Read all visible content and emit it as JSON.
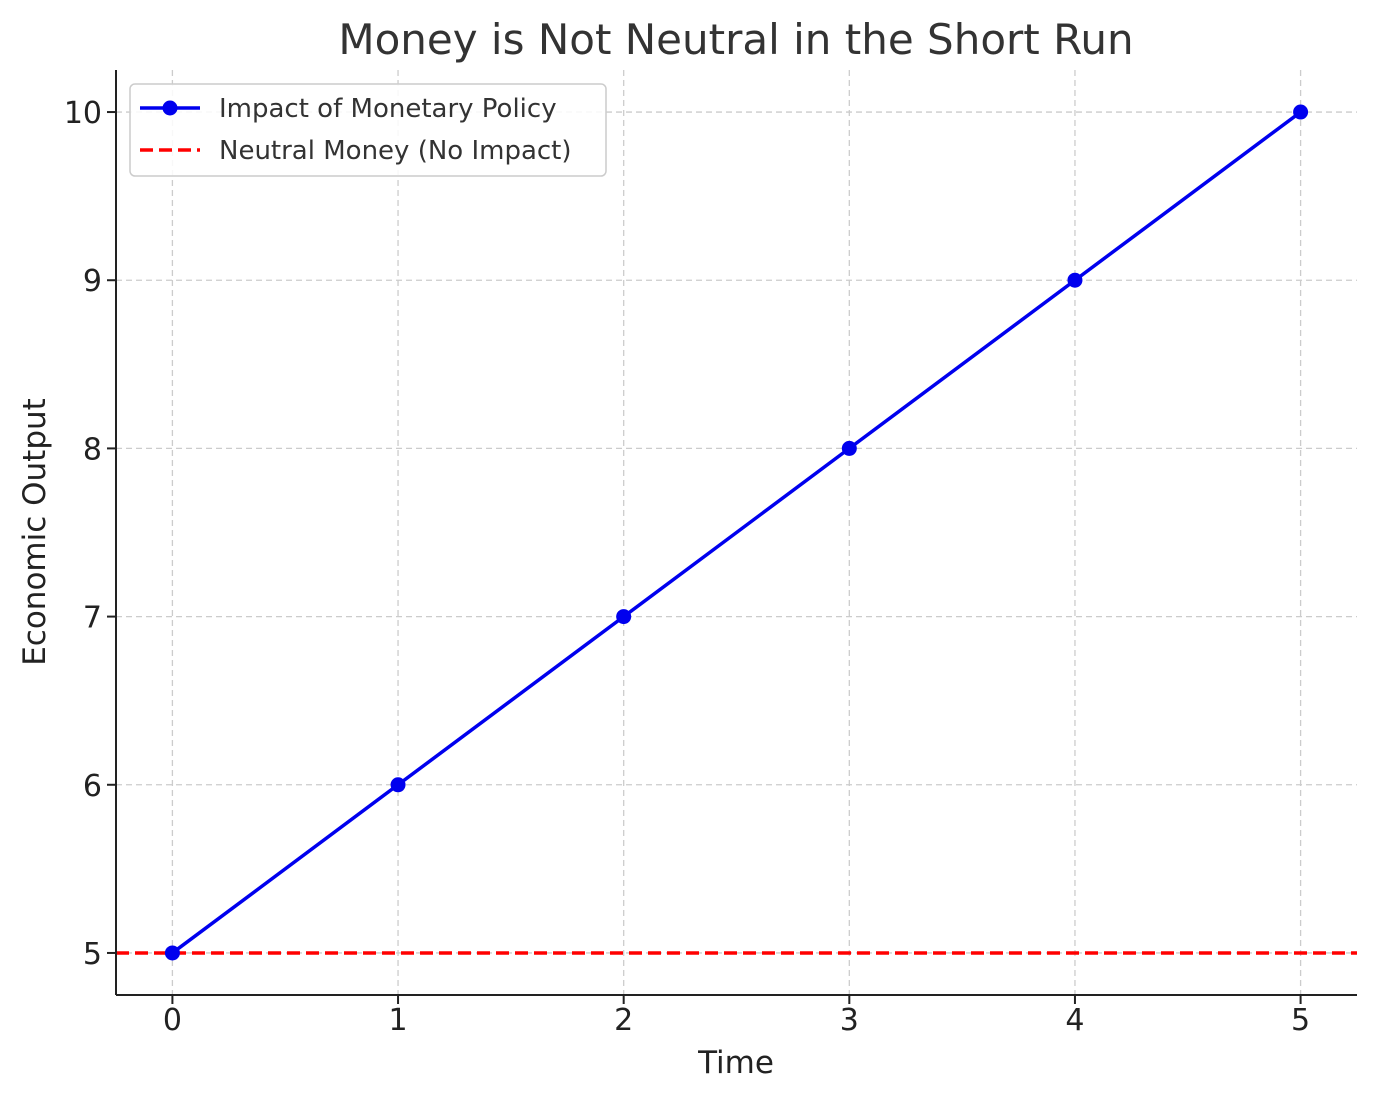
{
  "chart_data": {
    "type": "line",
    "title": "Money is Not Neutral in the Short Run",
    "xlabel": "Time",
    "ylabel": "Economic Output",
    "xlim": [
      -0.25,
      5.25
    ],
    "ylim": [
      4.75,
      10.25
    ],
    "x_ticks": [
      0,
      1,
      2,
      3,
      4,
      5
    ],
    "y_ticks": [
      5,
      6,
      7,
      8,
      9,
      10
    ],
    "grid": true,
    "legend_position": "top-left",
    "series": [
      {
        "name": "Impact of Monetary Policy",
        "x": [
          0,
          1,
          2,
          3,
          4,
          5
        ],
        "y": [
          5,
          6,
          7,
          8,
          9,
          10
        ],
        "color": "#0000ee",
        "line_style": "solid",
        "marker": "circle"
      },
      {
        "name": "Neutral Money (No Impact)",
        "type": "hline",
        "y": 5,
        "color": "#ff0000",
        "line_style": "dashed"
      }
    ]
  }
}
